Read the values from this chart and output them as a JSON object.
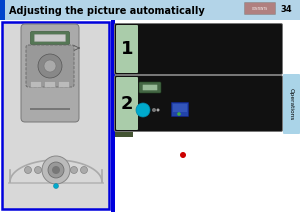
{
  "title": "Adjusting the picture automatically",
  "page_num": "34",
  "bg_color": "#ffffff",
  "header_bg": "#b3d4e8",
  "header_blue_accent": "#0044cc",
  "header_text_color": "#000000",
  "contents_btn_color": "#b08080",
  "contents_btn_text": "CONTENTS",
  "left_panel_border": "#0000dd",
  "left_panel_bg": "#d8d8d8",
  "right_separator": "#0000dd",
  "step1_label": "1",
  "step2_label": "2",
  "step_box_bg": "#111111",
  "step_label_bg": "#aaccaa",
  "step_border": "#777777",
  "operations_tab_color": "#aad4e8",
  "operations_text": "Operations",
  "remote_body": "#aaaaaa",
  "remote_dark": "#888888",
  "remote_green": "#557755",
  "remote_light": "#cccccc",
  "cyan_color": "#00aacc",
  "red_dot": "#cc0000",
  "blue_icon": "#2244aa",
  "green_icon": "#44aa44"
}
